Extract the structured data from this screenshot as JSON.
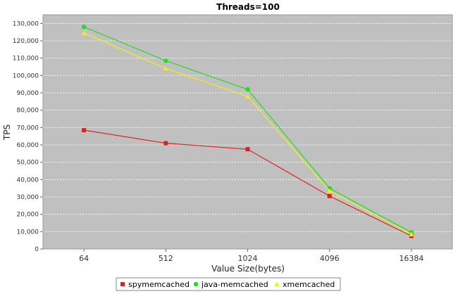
{
  "chart_data": {
    "type": "line",
    "title": "Threads=100",
    "xlabel": "Value Size(bytes)",
    "ylabel": "TPS",
    "categories": [
      "64",
      "512",
      "1024",
      "4096",
      "16384"
    ],
    "ylim": [
      0,
      135000
    ],
    "yticks": [
      0,
      10000,
      20000,
      30000,
      40000,
      50000,
      60000,
      70000,
      80000,
      90000,
      100000,
      110000,
      120000,
      130000
    ],
    "ytick_labels": [
      "0",
      "10,000",
      "20,000",
      "30,000",
      "40,000",
      "50,000",
      "60,000",
      "70,000",
      "80,000",
      "90,000",
      "100,000",
      "110,000",
      "120,000",
      "130,000"
    ],
    "grid": true,
    "legend_position": "bottom",
    "series": [
      {
        "name": "spymemcached",
        "color": "#dd2222",
        "marker": "square",
        "values": [
          68500,
          61000,
          57500,
          30500,
          7500
        ]
      },
      {
        "name": "java-memcached",
        "color": "#22dd22",
        "marker": "circle",
        "values": [
          128000,
          108500,
          92000,
          35000,
          9500
        ]
      },
      {
        "name": "xmemcached",
        "color": "#eeee22",
        "marker": "triangle",
        "values": [
          124500,
          104000,
          88000,
          33500,
          8500
        ]
      }
    ]
  }
}
